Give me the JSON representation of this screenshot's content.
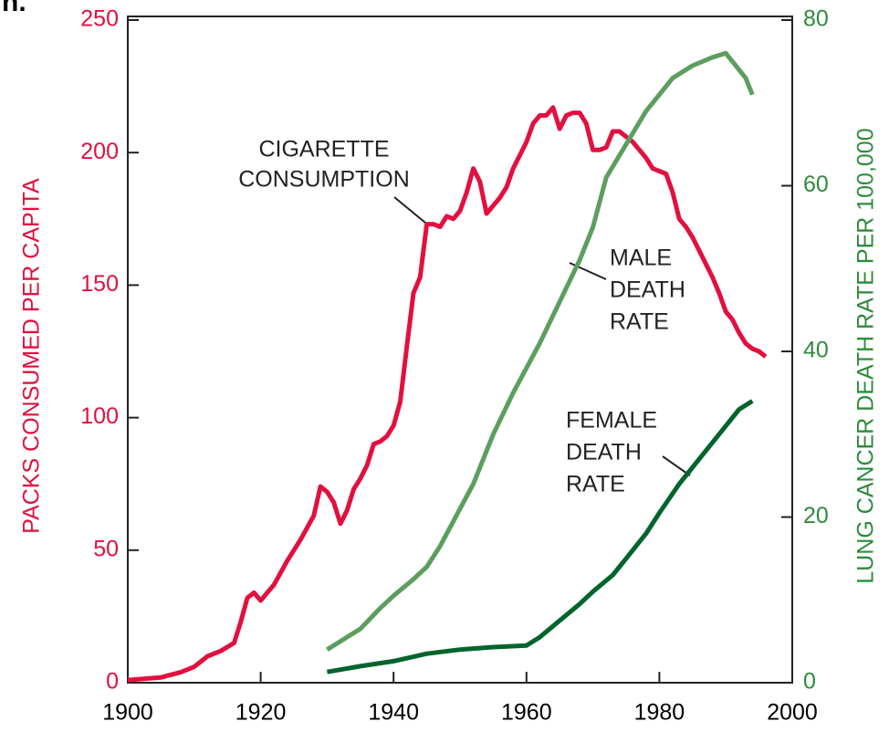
{
  "panel_label": "n.",
  "chart_data": {
    "type": "line",
    "xlabel": null,
    "ylabel": "PACKS CONSUMED PER CAPITA",
    "y2label": "LUNG CANCER DEATH RATE PER 100,000",
    "xlim": [
      1900,
      2000
    ],
    "xticks": [
      1900,
      1920,
      1940,
      1960,
      1980,
      2000
    ],
    "ylim": [
      0,
      250
    ],
    "yticks": [
      0,
      50,
      100,
      150,
      200,
      250
    ],
    "y2lim": [
      0,
      80
    ],
    "y2ticks": [
      0,
      20,
      40,
      60,
      80
    ],
    "ycolor": "#e2103f",
    "y2color": "#2f8a3c",
    "series": [
      {
        "name": "CIGARETTE CONSUMPTION",
        "color": "#e2103f",
        "axis": "y",
        "x": [
          1900,
          1905,
          1908,
          1910,
          1912,
          1914,
          1916,
          1917,
          1918,
          1919,
          1920,
          1921,
          1922,
          1924,
          1926,
          1928,
          1929,
          1930,
          1931,
          1932,
          1933,
          1934,
          1935,
          1936,
          1937,
          1938,
          1939,
          1940,
          1941,
          1942,
          1943,
          1944,
          1945,
          1946,
          1947,
          1948,
          1949,
          1950,
          1951,
          1952,
          1953,
          1954,
          1955,
          1956,
          1957,
          1958,
          1959,
          1960,
          1961,
          1962,
          1963,
          1964,
          1965,
          1966,
          1967,
          1968,
          1969,
          1970,
          1971,
          1972,
          1973,
          1974,
          1975,
          1976,
          1977,
          1978,
          1979,
          1980,
          1981,
          1982,
          1983,
          1984,
          1985,
          1986,
          1987,
          1988,
          1989,
          1990,
          1991,
          1992,
          1993,
          1994,
          1995,
          1996
        ],
        "values": [
          1,
          2,
          4,
          6,
          10,
          12,
          15,
          23,
          32,
          34,
          31,
          34,
          37,
          46,
          54,
          63,
          74,
          72,
          68,
          60,
          65,
          73,
          77,
          82,
          90,
          91,
          93,
          97,
          106,
          127,
          147,
          153,
          173,
          173,
          172,
          176,
          175,
          178,
          185,
          194,
          189,
          177,
          180,
          183,
          187,
          194,
          199,
          204,
          211,
          214,
          214,
          217,
          209,
          214,
          215,
          215,
          211,
          201,
          201,
          202,
          208,
          208,
          206,
          204,
          201,
          198,
          194,
          193,
          192,
          185,
          175,
          172,
          168,
          163,
          158,
          153,
          147,
          140,
          137,
          132,
          128,
          126,
          125,
          123
        ]
      },
      {
        "name": "MALE DEATH RATE",
        "color": "#5c9e5e",
        "axis": "y2",
        "x": [
          1930,
          1932,
          1935,
          1938,
          1940,
          1943,
          1945,
          1947,
          1950,
          1952,
          1955,
          1958,
          1960,
          1962,
          1965,
          1968,
          1970,
          1972,
          1975,
          1978,
          1980,
          1982,
          1985,
          1988,
          1990,
          1991,
          1993,
          1994
        ],
        "values": [
          4,
          5,
          6.5,
          9,
          10.5,
          12.5,
          14,
          16.5,
          21,
          24,
          30,
          35,
          38,
          41,
          46,
          51,
          55,
          61,
          65,
          69,
          71,
          73,
          74.5,
          75.5,
          76,
          75,
          73,
          71
        ]
      },
      {
        "name": "FEMALE DEATH RATE",
        "color": "#00642c",
        "axis": "y2",
        "x": [
          1930,
          1935,
          1940,
          1945,
          1950,
          1955,
          1960,
          1962,
          1965,
          1968,
          1970,
          1973,
          1975,
          1978,
          1980,
          1983,
          1985,
          1988,
          1990,
          1992,
          1994
        ],
        "values": [
          1.3,
          2,
          2.6,
          3.5,
          4,
          4.3,
          4.5,
          5.5,
          7.5,
          9.5,
          11,
          13,
          15,
          18,
          20.5,
          24,
          26,
          29,
          31,
          33,
          34
        ]
      }
    ],
    "annotations": [
      {
        "lines": [
          "CIGARETTE",
          "CONSUMPTION"
        ]
      },
      {
        "lines": [
          "MALE",
          "DEATH",
          "RATE"
        ]
      },
      {
        "lines": [
          "FEMALE",
          "DEATH",
          "RATE"
        ]
      }
    ]
  }
}
